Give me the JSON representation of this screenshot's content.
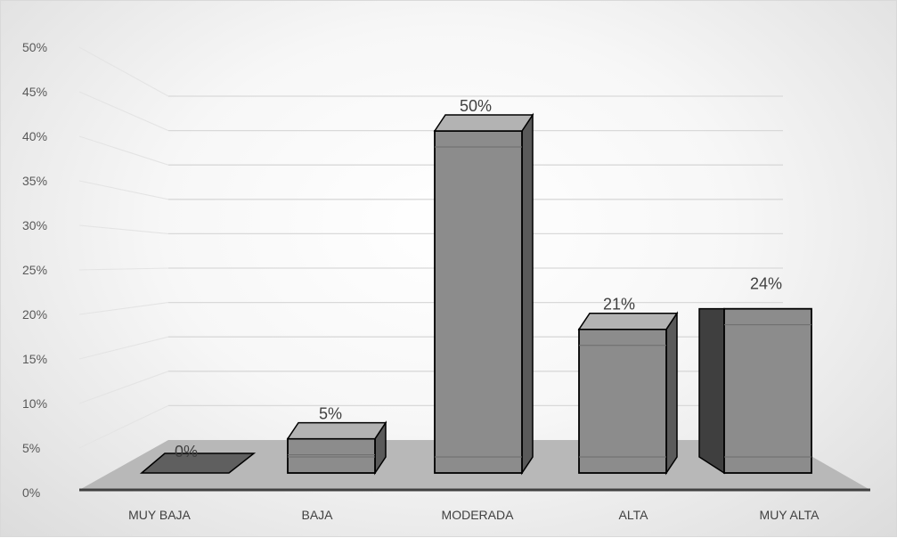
{
  "chart_data": {
    "type": "bar",
    "categories": [
      "MUY BAJA",
      "BAJA",
      "MODERADA",
      "ALTA",
      "MUY ALTA"
    ],
    "values": [
      0,
      5,
      50,
      21,
      24
    ],
    "data_labels": [
      "0%",
      "5%",
      "50%",
      "21%",
      "24%"
    ],
    "y_ticks": [
      "0%",
      "5%",
      "10%",
      "15%",
      "20%",
      "25%",
      "30%",
      "35%",
      "40%",
      "45%",
      "50%"
    ],
    "ylim": [
      0,
      50
    ],
    "title": "",
    "xlabel": "",
    "ylabel": "",
    "grid": true,
    "legend": "none",
    "style": "3d-column",
    "colors": {
      "bar_front": "#8c8c8c",
      "bar_side": "#5a5a5a",
      "bar_top": "#b3b3b3",
      "floor": "#b8b8b8",
      "gridline": "#d9d9d9"
    }
  }
}
